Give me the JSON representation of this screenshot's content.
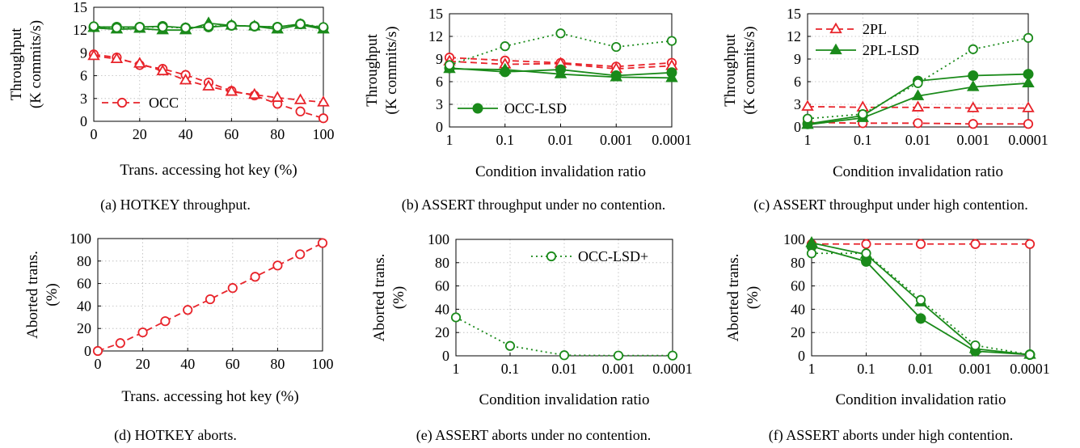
{
  "figure": {
    "captions": [
      "(a) HOTKEY throughput.",
      "(b) ASSERT throughput under no contention.",
      "(c) ASSERT throughput under high contention.",
      "(d) HOTKEY aborts.",
      "(e) ASSERT aborts under no contention.",
      "(f) ASSERT aborts under high contention."
    ]
  },
  "colors": {
    "red": "#e8232a",
    "green": "#1a8a1a"
  },
  "chart_data": [
    {
      "id": "a",
      "type": "line",
      "xlabel": "Trans. accessing hot key (%)",
      "ylabel": [
        "Throughput",
        "(K commits/s)"
      ],
      "xscale": "linear",
      "xlim": [
        0,
        100
      ],
      "ylim": [
        0,
        15
      ],
      "xticks": [
        0,
        20,
        40,
        60,
        80,
        100
      ],
      "xtick_labels": [
        "0",
        "20",
        "40",
        "60",
        "80",
        "100"
      ],
      "yticks": [
        0,
        3,
        6,
        9,
        12,
        15
      ],
      "ytick_labels": [
        "0",
        "3",
        "6",
        "9",
        "12",
        "15"
      ],
      "grid": true,
      "legend": {
        "position": "bottom-left",
        "entries": [
          {
            "label": "OCC",
            "color": "red",
            "dash": "dashed",
            "marker": "circle-open"
          }
        ]
      },
      "series": [
        {
          "color": "red",
          "dash": "dashed",
          "marker": "circle-open",
          "x": [
            0,
            10,
            20,
            30,
            40,
            50,
            60,
            70,
            80,
            90,
            100
          ],
          "y": [
            8.8,
            8.4,
            7.4,
            6.9,
            6.1,
            5.1,
            4.0,
            3.4,
            2.3,
            1.3,
            0.4
          ]
        },
        {
          "color": "red",
          "dash": "dashed",
          "marker": "triangle-open",
          "x": [
            0,
            10,
            20,
            30,
            40,
            50,
            60,
            70,
            80,
            90,
            100
          ],
          "y": [
            8.6,
            8.2,
            7.6,
            6.6,
            5.4,
            4.6,
            3.9,
            3.5,
            3.1,
            2.8,
            2.5
          ]
        },
        {
          "color": "green",
          "dash": "solid",
          "marker": "circle-filled",
          "x": [
            0,
            10,
            20,
            30,
            40,
            50,
            60,
            70,
            80,
            90,
            100
          ],
          "y": [
            12.4,
            12.4,
            12.4,
            12.5,
            12.3,
            12.4,
            12.6,
            12.5,
            12.4,
            12.8,
            12.3
          ]
        },
        {
          "color": "green",
          "dash": "solid",
          "marker": "triangle-filled",
          "x": [
            0,
            10,
            20,
            30,
            40,
            50,
            60,
            70,
            80,
            90,
            100
          ],
          "y": [
            12.3,
            12.1,
            12.2,
            12.0,
            12.0,
            12.9,
            12.6,
            12.5,
            12.1,
            12.7,
            12.1
          ]
        },
        {
          "color": "green",
          "dash": "dotted",
          "marker": "circle-open",
          "x": [
            0,
            10,
            20,
            30,
            40,
            50,
            60,
            70,
            80,
            90,
            100
          ],
          "y": [
            12.5,
            12.3,
            12.4,
            12.4,
            12.3,
            12.5,
            12.6,
            12.5,
            12.4,
            12.8,
            12.4
          ]
        }
      ]
    },
    {
      "id": "b",
      "type": "line",
      "xlabel": "Condition invalidation ratio",
      "ylabel": [
        "Throughput",
        "(K commits/s)"
      ],
      "xscale": "log-reversed",
      "ylim": [
        0,
        15
      ],
      "xticks": [
        1,
        0.1,
        0.01,
        0.001,
        0.0001
      ],
      "xtick_labels": [
        "1",
        "0.1",
        "0.01",
        "0.001",
        "0.0001"
      ],
      "yticks": [
        0,
        3,
        6,
        9,
        12,
        15
      ],
      "ytick_labels": [
        "0",
        "3",
        "6",
        "9",
        "12",
        "15"
      ],
      "grid": true,
      "legend": {
        "position": "bottom-left",
        "entries": [
          {
            "label": "OCC-LSD",
            "color": "green",
            "dash": "solid",
            "marker": "circle-filled"
          }
        ]
      },
      "series": [
        {
          "color": "red",
          "dash": "dashed",
          "marker": "circle-open",
          "x": [
            1,
            0.1,
            0.01,
            0.001,
            0.0001
          ],
          "y": [
            9.2,
            8.8,
            8.5,
            8.0,
            8.5
          ]
        },
        {
          "color": "red",
          "dash": "dashed",
          "marker": "triangle-open",
          "x": [
            1,
            0.1,
            0.01,
            0.001,
            0.0001
          ],
          "y": [
            8.7,
            8.3,
            8.4,
            7.7,
            8.1
          ]
        },
        {
          "color": "green",
          "dash": "solid",
          "marker": "circle-filled",
          "x": [
            1,
            0.1,
            0.01,
            0.001,
            0.0001
          ],
          "y": [
            7.8,
            7.3,
            7.6,
            6.8,
            7.2
          ]
        },
        {
          "color": "green",
          "dash": "solid",
          "marker": "triangle-filled",
          "x": [
            1,
            0.1,
            0.01,
            0.001,
            0.0001
          ],
          "y": [
            7.7,
            7.6,
            7.0,
            6.6,
            6.5
          ]
        },
        {
          "color": "green",
          "dash": "dotted",
          "marker": "circle-open",
          "x": [
            1,
            0.1,
            0.01,
            0.001,
            0.0001
          ],
          "y": [
            8.2,
            10.7,
            12.4,
            10.6,
            11.4
          ]
        }
      ]
    },
    {
      "id": "c",
      "type": "line",
      "xlabel": "Condition invalidation ratio",
      "ylabel": [
        "Throughput",
        "(K commits/s)"
      ],
      "xscale": "log-reversed",
      "ylim": [
        0,
        15
      ],
      "xticks": [
        1,
        0.1,
        0.01,
        0.001,
        0.0001
      ],
      "xtick_labels": [
        "1",
        "0.1",
        "0.01",
        "0.001",
        "0.0001"
      ],
      "yticks": [
        0,
        3,
        6,
        9,
        12,
        15
      ],
      "ytick_labels": [
        "0",
        "3",
        "6",
        "9",
        "12",
        "15"
      ],
      "grid": true,
      "legend": {
        "position": "top-left",
        "entries": [
          {
            "label": "2PL",
            "color": "red",
            "dash": "dashed",
            "marker": "triangle-open"
          },
          {
            "label": "2PL-LSD",
            "color": "green",
            "dash": "solid",
            "marker": "triangle-filled"
          }
        ]
      },
      "series": [
        {
          "color": "red",
          "dash": "dashed",
          "marker": "triangle-open",
          "x": [
            1,
            0.1,
            0.01,
            0.001,
            0.0001
          ],
          "y": [
            2.7,
            2.6,
            2.6,
            2.5,
            2.5
          ]
        },
        {
          "color": "red",
          "dash": "dashed",
          "marker": "circle-open",
          "x": [
            1,
            0.1,
            0.01,
            0.001,
            0.0001
          ],
          "y": [
            0.6,
            0.5,
            0.5,
            0.4,
            0.4
          ]
        },
        {
          "color": "green",
          "dash": "solid",
          "marker": "circle-filled",
          "x": [
            1,
            0.1,
            0.01,
            0.001,
            0.0001
          ],
          "y": [
            0.4,
            1.5,
            6.1,
            6.8,
            7.0
          ]
        },
        {
          "color": "green",
          "dash": "solid",
          "marker": "triangle-filled",
          "x": [
            1,
            0.1,
            0.01,
            0.001,
            0.0001
          ],
          "y": [
            0.3,
            1.2,
            4.1,
            5.3,
            5.8
          ]
        },
        {
          "color": "green",
          "dash": "dotted",
          "marker": "circle-open",
          "x": [
            1,
            0.1,
            0.01,
            0.001,
            0.0001
          ],
          "y": [
            1.1,
            1.7,
            5.8,
            10.3,
            11.8
          ]
        }
      ]
    },
    {
      "id": "d",
      "type": "line",
      "xlabel": "Trans. accessing hot key (%)",
      "ylabel": [
        "Aborted trans.",
        "(%)"
      ],
      "xscale": "linear",
      "xlim": [
        0,
        100
      ],
      "ylim": [
        0,
        100
      ],
      "xticks": [
        0,
        20,
        40,
        60,
        80,
        100
      ],
      "xtick_labels": [
        "0",
        "20",
        "40",
        "60",
        "80",
        "100"
      ],
      "yticks": [
        0,
        20,
        40,
        60,
        80,
        100
      ],
      "ytick_labels": [
        "0",
        "20",
        "40",
        "60",
        "80",
        "100"
      ],
      "grid": true,
      "legend": null,
      "series": [
        {
          "color": "red",
          "dash": "dashed",
          "marker": "circle-open",
          "x": [
            0,
            10,
            20,
            30,
            40,
            50,
            60,
            70,
            80,
            90,
            100
          ],
          "y": [
            0,
            7,
            16.5,
            26.5,
            36.5,
            46,
            56,
            66,
            76,
            86,
            96
          ]
        }
      ]
    },
    {
      "id": "e",
      "type": "line",
      "xlabel": "Condition invalidation ratio",
      "ylabel": [
        "Aborted trans.",
        "(%)"
      ],
      "xscale": "log-reversed",
      "ylim": [
        0,
        100
      ],
      "xticks": [
        1,
        0.1,
        0.01,
        0.001,
        0.0001
      ],
      "xtick_labels": [
        "1",
        "0.1",
        "0.01",
        "0.001",
        "0.0001"
      ],
      "yticks": [
        0,
        20,
        40,
        60,
        80,
        100
      ],
      "ytick_labels": [
        "0",
        "20",
        "40",
        "60",
        "80",
        "100"
      ],
      "grid": true,
      "legend": {
        "position": "top-right",
        "entries": [
          {
            "label": "OCC-LSD+",
            "color": "green",
            "dash": "dotted",
            "marker": "circle-open"
          }
        ]
      },
      "series": [
        {
          "color": "green",
          "dash": "dotted",
          "marker": "circle-open",
          "x": [
            1,
            0.1,
            0.01,
            0.001,
            0.0001
          ],
          "y": [
            33,
            8.5,
            0.5,
            0.2,
            0.2
          ]
        }
      ]
    },
    {
      "id": "f",
      "type": "line",
      "xlabel": "Condition invalidation ratio",
      "ylabel": [
        "Aborted trans.",
        "(%)"
      ],
      "xscale": "log-reversed",
      "ylim": [
        0,
        100
      ],
      "xticks": [
        1,
        0.1,
        0.01,
        0.001,
        0.0001
      ],
      "xtick_labels": [
        "1",
        "0.1",
        "0.01",
        "0.001",
        "0.0001"
      ],
      "yticks": [
        0,
        20,
        40,
        60,
        80,
        100
      ],
      "ytick_labels": [
        "0",
        "20",
        "40",
        "60",
        "80",
        "100"
      ],
      "grid": true,
      "legend": null,
      "series": [
        {
          "color": "red",
          "dash": "dashed",
          "marker": "circle-open",
          "x": [
            1,
            0.1,
            0.01,
            0.001,
            0.0001
          ],
          "y": [
            96,
            96,
            96,
            96,
            96
          ]
        },
        {
          "color": "green",
          "dash": "solid",
          "marker": "triangle-filled",
          "x": [
            1,
            0.1,
            0.01,
            0.001,
            0.0001
          ],
          "y": [
            97,
            87,
            46,
            6,
            1
          ]
        },
        {
          "color": "green",
          "dash": "solid",
          "marker": "circle-filled",
          "x": [
            1,
            0.1,
            0.01,
            0.001,
            0.0001
          ],
          "y": [
            94,
            81,
            32,
            4,
            1
          ]
        },
        {
          "color": "green",
          "dash": "dotted",
          "marker": "circle-open",
          "x": [
            1,
            0.1,
            0.01,
            0.001,
            0.0001
          ],
          "y": [
            88,
            88,
            48,
            9,
            1
          ]
        }
      ]
    }
  ]
}
